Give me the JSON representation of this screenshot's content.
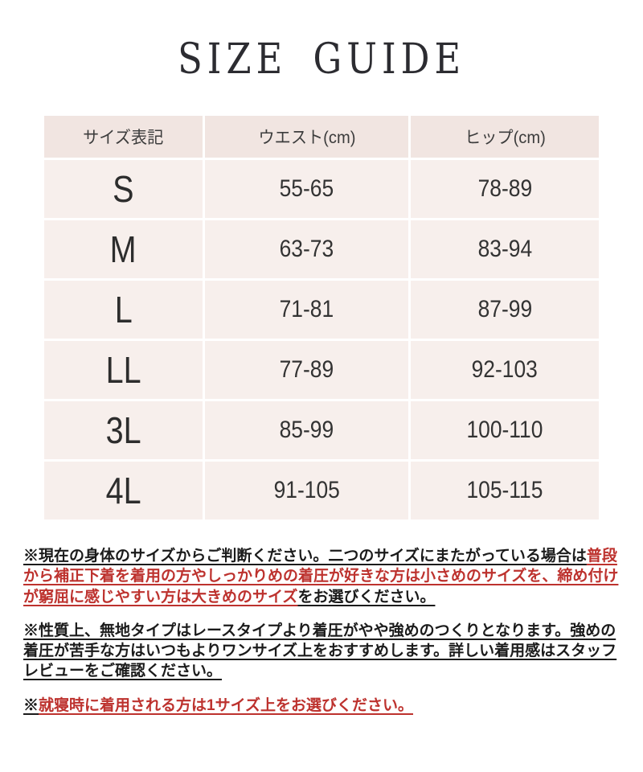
{
  "title": "SIZE GUIDE",
  "colors": {
    "page_bg": "#ffffff",
    "table_header_bg": "#f1e5e1",
    "table_row_bg": "#f7efec",
    "table_text": "#333333",
    "note_black": "#1b1b1b",
    "note_red": "#bd322e"
  },
  "table": {
    "headers": [
      "サイズ表記",
      "ウエスト(cm)",
      "ヒップ(cm)"
    ],
    "rows": [
      [
        "S",
        "55-65",
        "78-89"
      ],
      [
        "M",
        "63-73",
        "83-94"
      ],
      [
        "L",
        "71-81",
        "87-99"
      ],
      [
        "LL",
        "77-89",
        "92-103"
      ],
      [
        "3L",
        "85-99",
        "100-110"
      ],
      [
        "4L",
        "91-105",
        "105-115"
      ]
    ]
  },
  "notes": [
    {
      "segments": [
        {
          "text": "※現在の身体のサイズからご判断ください。二つのサイズにまたがっている場合は",
          "color": "black"
        },
        {
          "text": "普段から補正下着を着用の方やしっかりめの着圧が好きな方は小さめのサイズを、締め付けが窮屈に感じやすい方は大きめのサイズ",
          "color": "red"
        },
        {
          "text": "をお選びください。",
          "color": "black"
        }
      ]
    },
    {
      "segments": [
        {
          "text": "※性質上、無地タイプはレースタイプより着圧がやや強めのつくりとなります。強めの着圧が苦手な方はいつもよりワンサイズ上をおすすめします。詳しい着用感はスタッフレビューをご確認ください。",
          "color": "black"
        }
      ]
    },
    {
      "segments": [
        {
          "text": "※",
          "color": "black"
        },
        {
          "text": "就寝時に着用される方は1サイズ上をお選びください。",
          "color": "red"
        }
      ]
    }
  ]
}
